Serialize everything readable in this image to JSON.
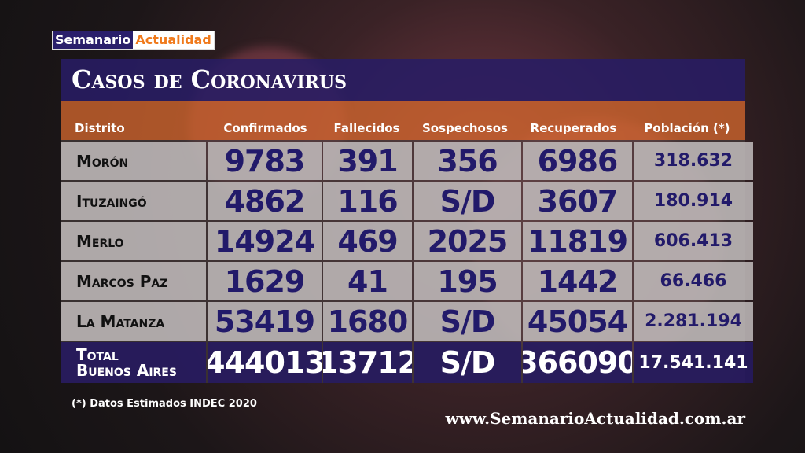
{
  "logo": {
    "part1": "Semanario",
    "part2": "Actualidad"
  },
  "title": "Casos de Coronavirus",
  "columns": [
    "Distrito",
    "Confirmados",
    "Fallecidos",
    "Sospechosos",
    "Recuperados",
    "Población (*)"
  ],
  "rows": [
    [
      "Morón",
      "9783",
      "391",
      "356",
      "6986",
      "318.632"
    ],
    [
      "Ituzaingó",
      "4862",
      "116",
      "S/D",
      "3607",
      "180.914"
    ],
    [
      "Merlo",
      "14924",
      "469",
      "2025",
      "11819",
      "606.413"
    ],
    [
      "Marcos Paz",
      "1629",
      "41",
      "195",
      "1442",
      "66.466"
    ],
    [
      "La Matanza",
      "53419",
      "1680",
      "S/D",
      "45054",
      "2.281.194"
    ]
  ],
  "total": {
    "label1": "Total",
    "label2": "Buenos Aires",
    "values": [
      "444013",
      "13712",
      "S/D",
      "366090",
      "17.541.141"
    ]
  },
  "footnote": "(*) Datos Estimados INDEC 2020",
  "website": "www.SemanarioActualidad.com.ar",
  "colors": {
    "purple": "#281c64",
    "orange": "#cd642d",
    "number": "#221a6a"
  }
}
